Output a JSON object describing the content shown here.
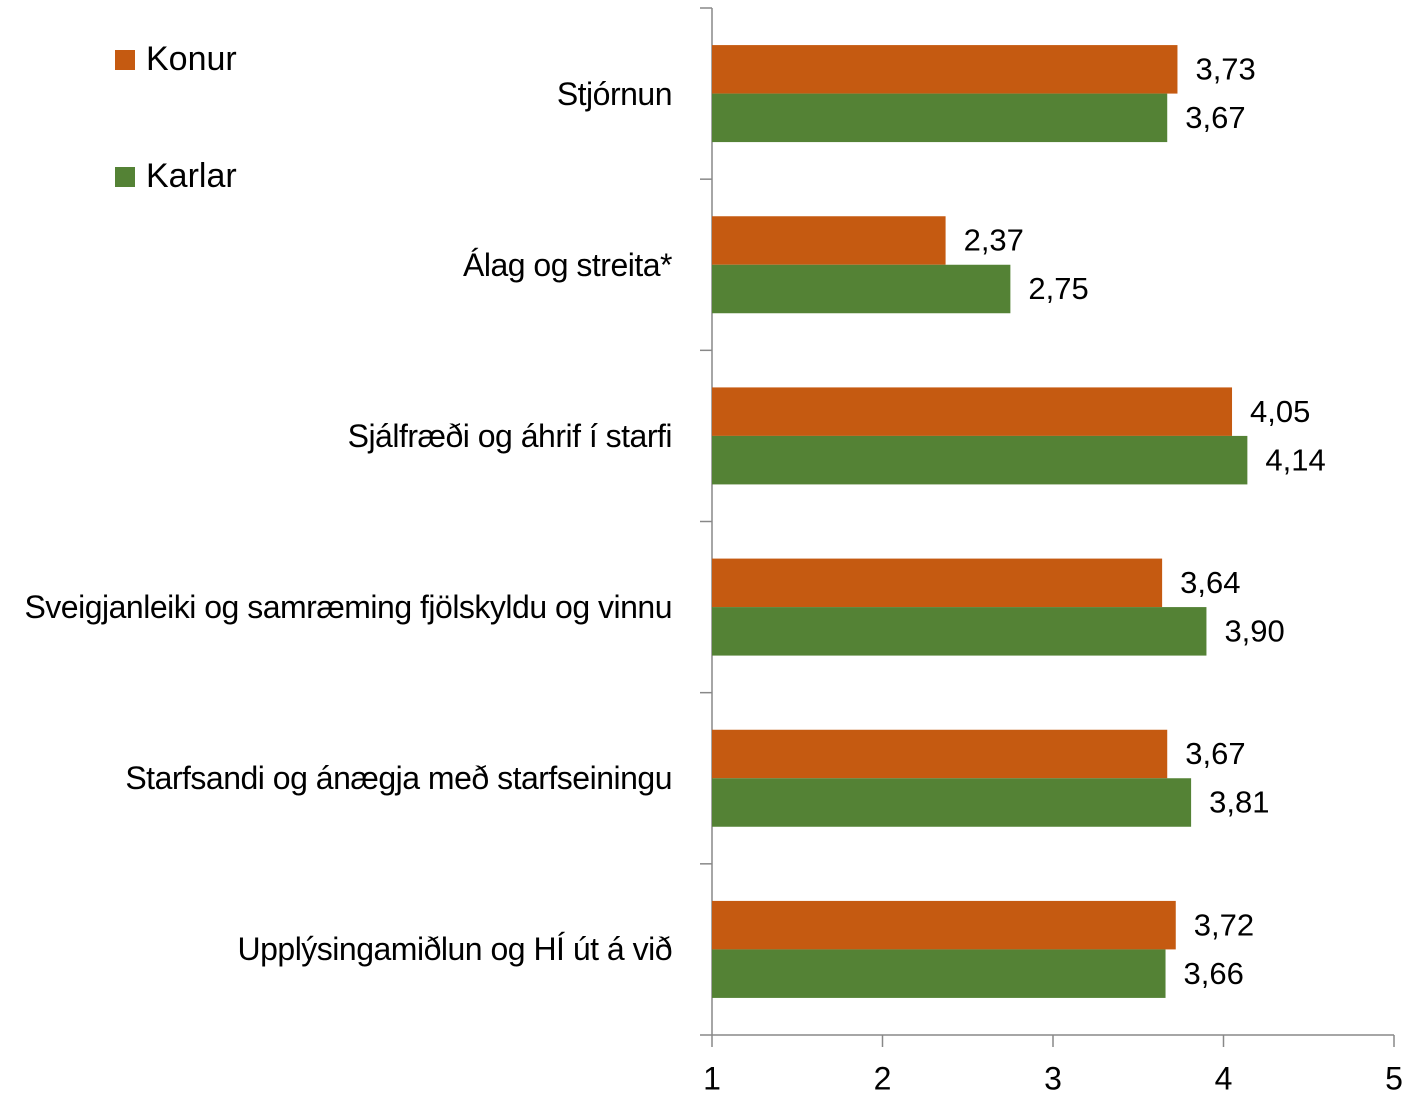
{
  "chart_data": {
    "type": "bar",
    "orientation": "horizontal",
    "categories": [
      "Stjórnun",
      "Álag og streita*",
      "Sjálfræði og áhrif í starfi",
      "Sveigjanleiki og samræming fjölskyldu og vinnu",
      "Starfsandi og ánægja með starfseiningu",
      "Upplýsingamiðlun og HÍ út á við"
    ],
    "series": [
      {
        "name": "Konur",
        "color": "#c55a11",
        "values": [
          3.73,
          2.37,
          4.05,
          3.64,
          3.67,
          3.72
        ],
        "value_labels": [
          "3,73",
          "2,37",
          "4,05",
          "3,64",
          "3,67",
          "3,72"
        ]
      },
      {
        "name": "Karlar",
        "color": "#548235",
        "values": [
          3.67,
          2.75,
          4.14,
          3.9,
          3.81,
          3.66
        ],
        "value_labels": [
          "3,67",
          "2,75",
          "4,14",
          "3,90",
          "3,81",
          "3,66"
        ]
      }
    ],
    "xlim": [
      1,
      5
    ],
    "xticks": [
      1,
      2,
      3,
      4,
      5
    ],
    "legend": "top-left"
  }
}
